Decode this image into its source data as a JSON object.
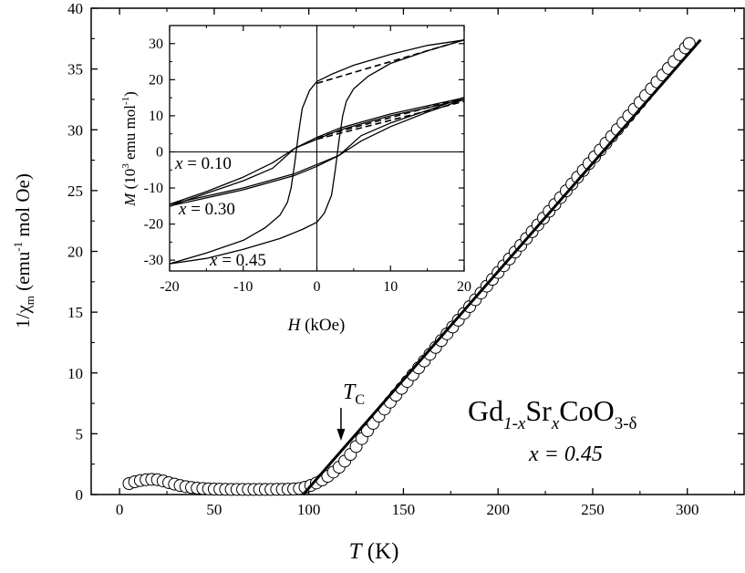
{
  "chart_data": [
    {
      "type": "scatter",
      "title": "",
      "xlabel": "T (K)",
      "xlabel_parts": {
        "var": "T",
        "unit": " (K)"
      },
      "ylabel": "1/χm (emu⁻¹ mol Oe)",
      "ylabel_parts": {
        "a": "1/χ",
        "sub": "m",
        "b": " (emu",
        "sup": "-1",
        "c": " mol Oe)"
      },
      "xlim": [
        -15,
        330
      ],
      "ylim": [
        0,
        40
      ],
      "xticks": [
        0,
        50,
        100,
        150,
        200,
        250,
        300
      ],
      "yticks": [
        0,
        5,
        10,
        15,
        20,
        25,
        30,
        35,
        40
      ],
      "grid": false,
      "series": [
        {
          "marker": "open-circle",
          "x": [
            5,
            8,
            11,
            14,
            17,
            20,
            23,
            26,
            29,
            32,
            35,
            38,
            41,
            44,
            47,
            50,
            53,
            56,
            59,
            62,
            65,
            68,
            71,
            74,
            77,
            80,
            83,
            86,
            89,
            92,
            95,
            98,
            101,
            104,
            107,
            110,
            113,
            116,
            119,
            122,
            125,
            128,
            131,
            134,
            137,
            140,
            143,
            146,
            149,
            152,
            155,
            158,
            161,
            164,
            167,
            170,
            173,
            176,
            179,
            182,
            185,
            188,
            191,
            194,
            197,
            200,
            203,
            206,
            209,
            212,
            215,
            218,
            221,
            224,
            227,
            230,
            233,
            236,
            239,
            242,
            245,
            248,
            251,
            254,
            257,
            260,
            263,
            266,
            269,
            272,
            275,
            278,
            281,
            284,
            287,
            290,
            293,
            296,
            299,
            301
          ],
          "y": [
            0.9,
            1.05,
            1.15,
            1.22,
            1.25,
            1.22,
            1.12,
            0.98,
            0.85,
            0.74,
            0.65,
            0.58,
            0.53,
            0.5,
            0.47,
            0.45,
            0.44,
            0.43,
            0.42,
            0.42,
            0.42,
            0.42,
            0.42,
            0.42,
            0.42,
            0.42,
            0.43,
            0.43,
            0.44,
            0.46,
            0.5,
            0.6,
            0.75,
            0.95,
            1.2,
            1.5,
            1.85,
            2.25,
            2.75,
            3.3,
            3.95,
            4.6,
            5.25,
            5.85,
            6.45,
            7.03,
            7.6,
            8.17,
            8.73,
            9.3,
            9.86,
            10.42,
            10.98,
            11.54,
            12.1,
            12.66,
            13.22,
            13.78,
            14.34,
            14.9,
            15.46,
            16.02,
            16.58,
            17.14,
            17.7,
            18.26,
            18.82,
            19.38,
            19.94,
            20.5,
            21.06,
            21.62,
            22.18,
            22.74,
            23.3,
            23.86,
            24.42,
            24.98,
            25.54,
            26.1,
            26.66,
            27.22,
            27.78,
            28.34,
            28.9,
            29.46,
            30.02,
            30.58,
            31.14,
            31.7,
            32.26,
            32.82,
            33.38,
            33.94,
            34.5,
            35.06,
            35.62,
            36.18,
            36.74,
            37.1
          ]
        },
        {
          "marker": "line",
          "style": "solid-thick",
          "x": [
            97,
            307
          ],
          "y": [
            0,
            37.4
          ]
        }
      ],
      "annotations": {
        "tc_label_var": "T",
        "tc_label_sub": "C",
        "tc_arrow_x": 117,
        "formula": {
          "Gd": "Gd",
          "s1": "1-x",
          "Sr": "Sr",
          "s2": "x",
          "Co": "CoO",
          "s3": "3-δ"
        },
        "composition": "x = 0.45"
      }
    },
    {
      "type": "line",
      "inset": true,
      "title": "",
      "xlabel": "H (kOe)",
      "xlabel_parts": {
        "var": "H",
        "unit": " (kOe)"
      },
      "ylabel": "M (10³ emu mol⁻¹)",
      "ylabel_parts": {
        "var": "M",
        "a": " (10",
        "sup1": "3",
        "b": " emu mol",
        "sup2": "-1",
        "c": ")"
      },
      "xlim": [
        -20,
        20
      ],
      "ylim": [
        -33,
        35
      ],
      "xticks": [
        -20,
        -10,
        0,
        10,
        20
      ],
      "yticks": [
        -30,
        -20,
        -10,
        0,
        10,
        20,
        30
      ],
      "grid": false,
      "series": [
        {
          "name": "x = 0.10",
          "branch_down": {
            "x": [
              20,
              10,
              3,
              0,
              -3,
              -6,
              -10,
              -15,
              -20
            ],
            "y": [
              14.5,
              10,
              6,
              3.5,
              1,
              -3,
              -7,
              -11,
              -14.5
            ]
          },
          "branch_up": {
            "x": [
              -20,
              -10,
              -3,
              0,
              3,
              6,
              10,
              15,
              20
            ],
            "y": [
              -14.5,
              -10,
              -6,
              -3.5,
              -1,
              3,
              7,
              11,
              14.5
            ]
          },
          "fit": {
            "x": [
              0,
              20
            ],
            "y": [
              3.5,
              14
            ]
          }
        },
        {
          "name": "x = 0.30",
          "branch_down": {
            "x": [
              20,
              10,
              3,
              0,
              -3,
              -6,
              -10,
              -15,
              -20
            ],
            "y": [
              15,
              10.5,
              6.5,
              4,
              1,
              -4.5,
              -8,
              -11.5,
              -15
            ]
          },
          "branch_up": {
            "x": [
              -20,
              -10,
              -3,
              0,
              3,
              6,
              10,
              15,
              20
            ],
            "y": [
              -15,
              -10.5,
              -6.5,
              -4,
              -1,
              4.5,
              8,
              11.5,
              15
            ]
          },
          "fit": {
            "x": [
              0,
              20
            ],
            "y": [
              4,
              15
            ]
          }
        },
        {
          "name": "x = 0.45",
          "branch_down": {
            "x": [
              20,
              15,
              10,
              5,
              2,
              0,
              -1,
              -2,
              -2.5,
              -3,
              -3.5,
              -4,
              -5,
              -7,
              -10,
              -15,
              -20
            ],
            "y": [
              31,
              29.5,
              27,
              24,
              21.5,
              19.5,
              17,
              12,
              5,
              -3,
              -10,
              -14,
              -17.5,
              -21,
              -24.5,
              -28,
              -31
            ]
          },
          "branch_up": {
            "x": [
              -20,
              -15,
              -10,
              -5,
              -2,
              0,
              1,
              2,
              2.5,
              3,
              3.5,
              4,
              5,
              7,
              10,
              15,
              20
            ],
            "y": [
              -31,
              -29.5,
              -27,
              -24,
              -21.5,
              -19.5,
              -17,
              -12,
              -5,
              3,
              10,
              14,
              17.5,
              21,
              24.5,
              28,
              31
            ]
          },
          "fit": {
            "x": [
              0,
              20
            ],
            "y": [
              19,
              31
            ]
          }
        }
      ]
    }
  ]
}
